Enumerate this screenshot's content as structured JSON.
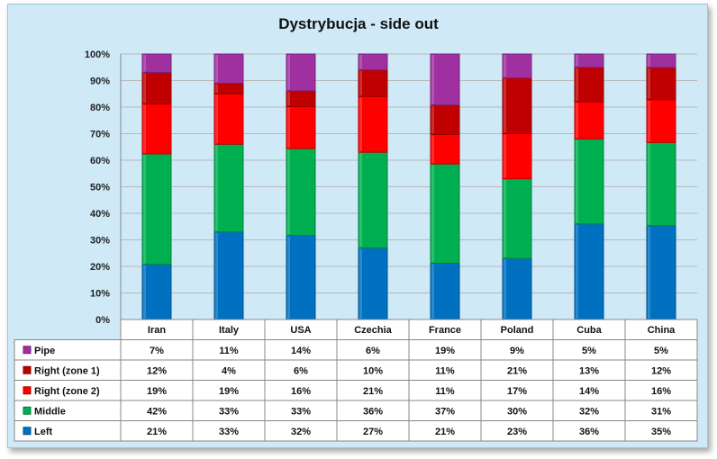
{
  "chart_data": {
    "type": "bar",
    "stacked": true,
    "percent": true,
    "title": "Dystrybucja - side out",
    "categories": [
      "Iran",
      "Italy",
      "USA",
      "Czechia",
      "France",
      "Poland",
      "Cuba",
      "China"
    ],
    "yticks": [
      "0%",
      "10%",
      "20%",
      "30%",
      "40%",
      "50%",
      "60%",
      "70%",
      "80%",
      "90%",
      "100%"
    ],
    "ylim": [
      0,
      100
    ],
    "grid": true,
    "legend": "data-table-below",
    "series": [
      {
        "name": "Left",
        "color": "#0070c0",
        "values": [
          21,
          33,
          32,
          27,
          21,
          23,
          36,
          35
        ],
        "labels": [
          "21%",
          "33%",
          "32%",
          "27%",
          "21%",
          "23%",
          "36%",
          "35%"
        ]
      },
      {
        "name": "Middle",
        "color": "#00b050",
        "values": [
          42,
          33,
          33,
          36,
          37,
          30,
          32,
          31
        ],
        "labels": [
          "42%",
          "33%",
          "33%",
          "36%",
          "37%",
          "30%",
          "32%",
          "31%"
        ]
      },
      {
        "name": "Right (zone 2)",
        "color": "#ff0000",
        "values": [
          19,
          19,
          16,
          21,
          11,
          17,
          14,
          16
        ],
        "labels": [
          "19%",
          "19%",
          "16%",
          "21%",
          "11%",
          "17%",
          "14%",
          "16%"
        ]
      },
      {
        "name": "Right (zone 1)",
        "color": "#c00000",
        "values": [
          12,
          4,
          6,
          10,
          11,
          21,
          13,
          12
        ],
        "labels": [
          "12%",
          "4%",
          "6%",
          "10%",
          "11%",
          "21%",
          "13%",
          "12%"
        ]
      },
      {
        "name": "Pipe",
        "color": "#a030a0",
        "values": [
          7,
          11,
          14,
          6,
          19,
          9,
          5,
          5
        ],
        "labels": [
          "7%",
          "11%",
          "14%",
          "6%",
          "19%",
          "9%",
          "5%",
          "5%"
        ]
      }
    ]
  }
}
